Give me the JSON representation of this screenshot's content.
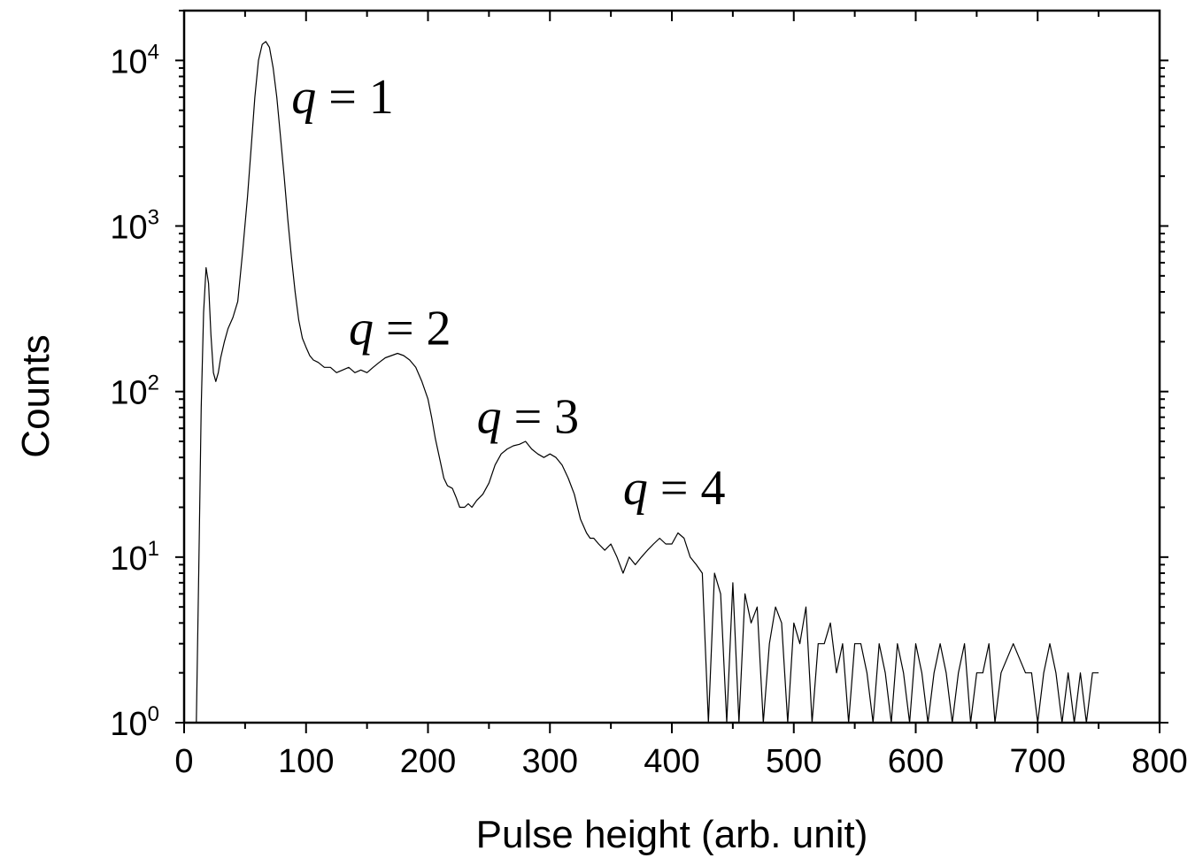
{
  "chart_data": {
    "type": "line",
    "title": "",
    "xlabel": "Pulse height (arb. unit)",
    "ylabel": "Counts",
    "xlim": [
      0,
      800
    ],
    "ylim": [
      1,
      20000
    ],
    "yscale": "log",
    "grid": false,
    "legend": "none",
    "line_color": "#000000",
    "x_ticks": [
      "0",
      "100",
      "200",
      "300",
      "400",
      "500",
      "600",
      "700",
      "800"
    ],
    "x_tick_values": [
      0,
      100,
      200,
      300,
      400,
      500,
      600,
      700,
      800
    ],
    "y_ticks": [
      {
        "base": "10",
        "exp": "0",
        "value": 1
      },
      {
        "base": "10",
        "exp": "1",
        "value": 10
      },
      {
        "base": "10",
        "exp": "2",
        "value": 100
      },
      {
        "base": "10",
        "exp": "3",
        "value": 1000
      },
      {
        "base": "10",
        "exp": "4",
        "value": 10000
      }
    ],
    "annotations": [
      {
        "var": "q",
        "rest": " = 1",
        "x": 88,
        "y": 6000
      },
      {
        "var": "q",
        "rest": " = 2",
        "x": 135,
        "y": 240
      },
      {
        "var": "q",
        "rest": " = 3",
        "x": 240,
        "y": 70
      },
      {
        "var": "q",
        "rest": " = 4",
        "x": 360,
        "y": 26
      }
    ],
    "series": [
      {
        "x": [
          10,
          12,
          14,
          16,
          18,
          20,
          22,
          24,
          26,
          28,
          30,
          33,
          36,
          40,
          44,
          48,
          52,
          55,
          58,
          61,
          64,
          67,
          70,
          73,
          76,
          79,
          82,
          85,
          88,
          91,
          94,
          97,
          100,
          103,
          106,
          110,
          115,
          120,
          125,
          130,
          135,
          140,
          145,
          150,
          155,
          160,
          165,
          170,
          175,
          180,
          185,
          190,
          195,
          200,
          203,
          206,
          210,
          213,
          216,
          220,
          223,
          226,
          230,
          233,
          236,
          240,
          245,
          250,
          255,
          260,
          265,
          270,
          275,
          280,
          285,
          290,
          295,
          300,
          305,
          310,
          315,
          320,
          325,
          330,
          333,
          336,
          340,
          345,
          350,
          355,
          360,
          365,
          370,
          375,
          380,
          385,
          390,
          395,
          400,
          405,
          410,
          415,
          420,
          425,
          430,
          435,
          440,
          445,
          450,
          455,
          460,
          465,
          470,
          475,
          480,
          485,
          490,
          495,
          500,
          505,
          510,
          515,
          520,
          525,
          530,
          535,
          540,
          545,
          550,
          555,
          560,
          565,
          570,
          575,
          580,
          585,
          590,
          595,
          600,
          605,
          610,
          615,
          620,
          625,
          630,
          635,
          640,
          645,
          650,
          655,
          660,
          665,
          670,
          680,
          690,
          695,
          700,
          705,
          710,
          715,
          720,
          725,
          730,
          735,
          740,
          745,
          748,
          750
        ],
        "y": [
          1,
          8,
          80,
          300,
          560,
          450,
          220,
          130,
          115,
          130,
          160,
          200,
          240,
          280,
          350,
          700,
          1500,
          3000,
          6000,
          10000,
          12500,
          13000,
          12000,
          9000,
          6000,
          3500,
          2000,
          1100,
          650,
          400,
          270,
          210,
          185,
          165,
          155,
          150,
          140,
          140,
          130,
          135,
          140,
          130,
          135,
          130,
          140,
          150,
          160,
          165,
          170,
          165,
          155,
          140,
          115,
          90,
          70,
          52,
          38,
          30,
          27,
          26,
          23,
          20,
          20,
          21,
          20,
          22,
          24,
          28,
          36,
          42,
          45,
          47,
          48,
          50,
          45,
          42,
          40,
          42,
          40,
          36,
          30,
          24,
          17,
          14,
          13,
          13,
          12,
          11,
          12,
          10,
          8,
          10,
          9,
          10,
          11,
          12,
          13,
          12,
          12,
          14,
          13,
          10,
          9,
          8,
          1,
          8,
          6,
          1,
          7,
          1,
          6,
          4,
          5,
          1,
          3,
          5,
          4,
          1,
          4,
          3,
          5,
          1,
          3,
          3,
          4,
          2,
          3,
          1,
          3,
          3,
          2,
          1,
          3,
          2,
          1,
          3,
          2,
          1,
          3,
          2,
          1,
          2,
          3,
          2,
          1,
          2,
          3,
          1,
          2,
          2,
          3,
          1,
          2,
          3,
          2,
          2,
          1,
          2,
          3,
          2,
          1,
          2,
          1,
          2,
          1,
          2,
          2,
          2
        ]
      }
    ]
  }
}
